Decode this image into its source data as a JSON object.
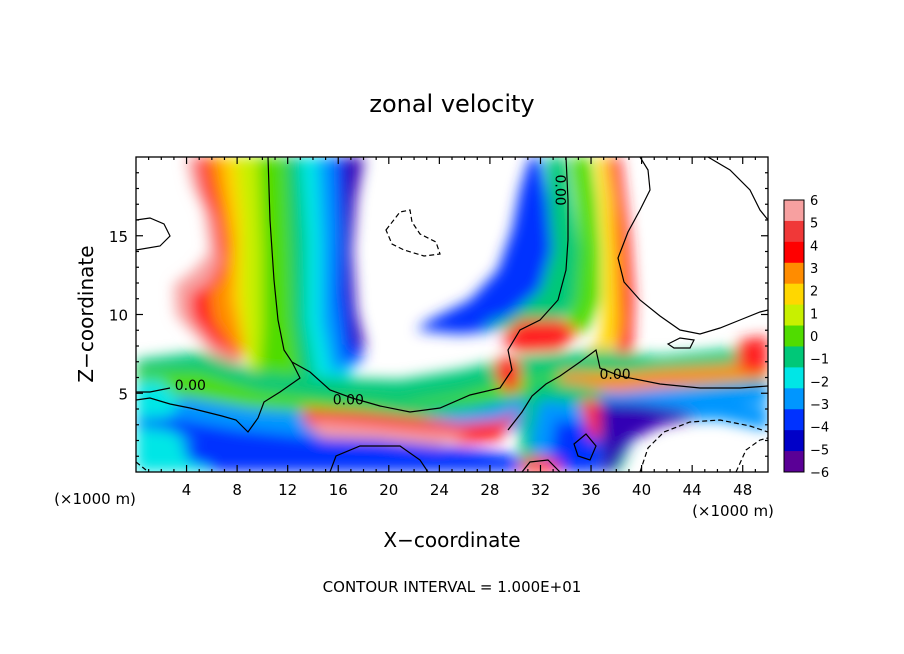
{
  "chart_data": {
    "type": "heatmap",
    "title": "zonal velocity",
    "xlabel": "X−coordinate",
    "ylabel": "Z−coordinate",
    "x_unit_left": "(×1000 m)",
    "x_unit_right": "(×1000 m)",
    "xlim": [
      0,
      50
    ],
    "ylim": [
      0,
      20
    ],
    "x_ticks": [
      "4",
      "8",
      "12",
      "16",
      "20",
      "24",
      "28",
      "32",
      "36",
      "40",
      "44",
      "48"
    ],
    "x_tick_values": [
      4,
      8,
      12,
      16,
      20,
      24,
      28,
      32,
      36,
      40,
      44,
      48
    ],
    "y_ticks": [
      "5",
      "10",
      "15"
    ],
    "y_tick_values": [
      5,
      10,
      15
    ],
    "colorbar": {
      "levels": [
        "6",
        "5",
        "4",
        "3",
        "2",
        "1",
        "0",
        "−1",
        "−2",
        "−3",
        "−4",
        "−5",
        "−6"
      ],
      "values": [
        6,
        5,
        4,
        3,
        2,
        1,
        0,
        -1,
        -2,
        -3,
        -4,
        -5,
        -6
      ],
      "colors": [
        "#f7a0a0",
        "#f03838",
        "#ff0000",
        "#ff8c00",
        "#ffd700",
        "#c8f000",
        "#50dc00",
        "#00c878",
        "#00e6e6",
        "#0096ff",
        "#0032ff",
        "#0000c8",
        "#5a0096"
      ]
    },
    "contour_labels": [
      {
        "text": "0.00",
        "x": 4.3,
        "y": 5.2
      },
      {
        "text": "0.00",
        "x": 16.8,
        "y": 4.3
      },
      {
        "text": "0.00",
        "x": 33.2,
        "y": 17.9
      },
      {
        "text": "0.00",
        "x": 37.9,
        "y": 5.9
      }
    ],
    "footer": "CONTOUR INTERVAL = 1.000E+01"
  }
}
